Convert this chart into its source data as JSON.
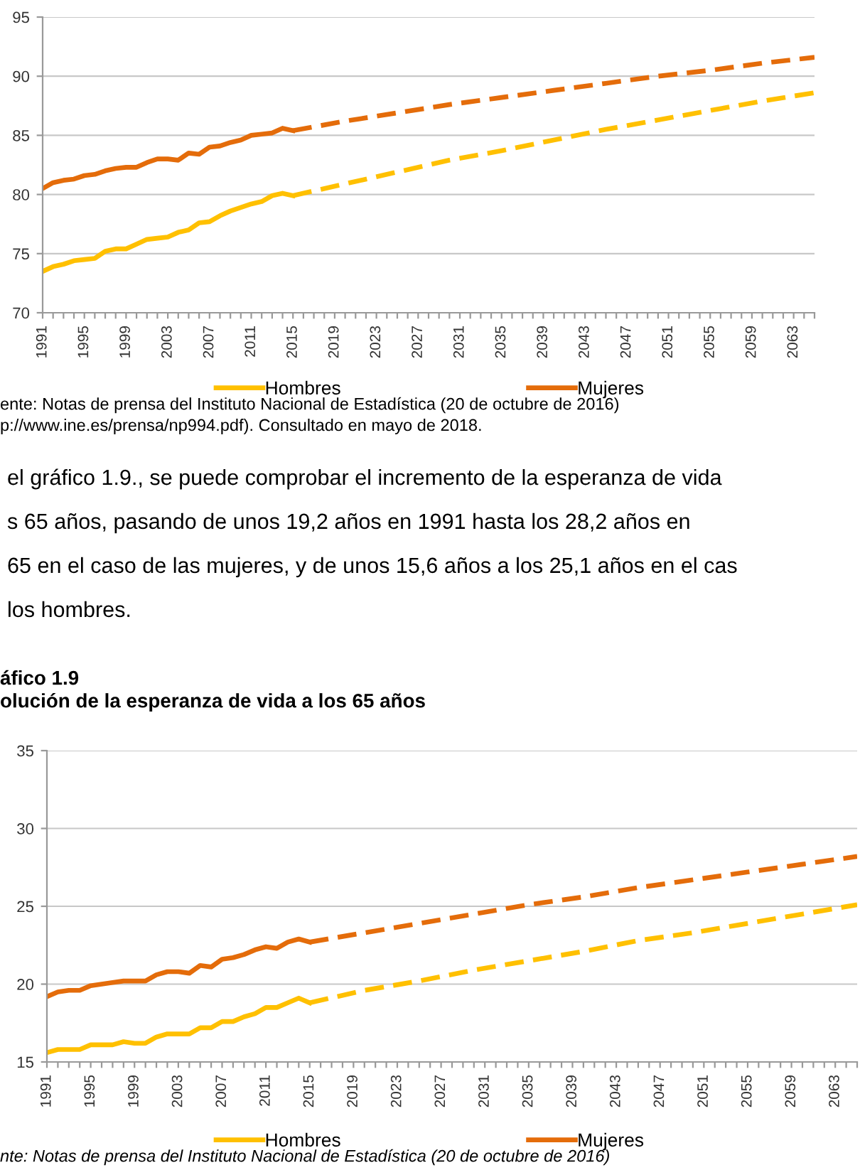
{
  "chart_data": [
    {
      "type": "line",
      "x": [
        1991,
        1992,
        1993,
        1994,
        1995,
        1996,
        1997,
        1998,
        1999,
        2000,
        2001,
        2002,
        2003,
        2004,
        2005,
        2006,
        2007,
        2008,
        2009,
        2010,
        2011,
        2012,
        2013,
        2014,
        2015
      ],
      "series": [
        {
          "name": "Hombres",
          "color": "#ffc000",
          "line_style": "solid",
          "values": [
            73.5,
            73.9,
            74.1,
            74.4,
            74.5,
            74.6,
            75.2,
            75.4,
            75.4,
            75.8,
            76.2,
            76.3,
            76.4,
            76.8,
            77.0,
            77.6,
            77.7,
            78.2,
            78.6,
            78.9,
            79.2,
            79.4,
            79.9,
            80.1,
            79.9
          ]
        },
        {
          "name": "Mujeres",
          "color": "#e46c0a",
          "line_style": "solid",
          "values": [
            80.5,
            81.0,
            81.2,
            81.3,
            81.6,
            81.7,
            82.0,
            82.2,
            82.3,
            82.3,
            82.7,
            83.0,
            83.0,
            82.9,
            83.5,
            83.4,
            84.0,
            84.1,
            84.4,
            84.6,
            85.0,
            85.1,
            85.2,
            85.6,
            85.4
          ]
        },
        {
          "color": "#ffc000",
          "line_style": "dashed",
          "x": [
            2015,
            2020,
            2025,
            2030,
            2035,
            2040,
            2045,
            2050,
            2055,
            2060,
            2065
          ],
          "values": [
            79.9,
            80.9,
            81.9,
            82.9,
            83.7,
            84.6,
            85.5,
            86.3,
            87.1,
            87.9,
            88.6
          ]
        },
        {
          "color": "#e46c0a",
          "line_style": "dashed",
          "x": [
            2015,
            2020,
            2025,
            2030,
            2035,
            2040,
            2045,
            2050,
            2055,
            2060,
            2065
          ],
          "values": [
            85.4,
            86.2,
            86.9,
            87.6,
            88.2,
            88.8,
            89.4,
            90.0,
            90.5,
            91.1,
            91.6
          ]
        }
      ],
      "xlim": [
        1991,
        2065
      ],
      "xticks": [
        1991,
        {
          "value": 1992,
          "label": null
        },
        {
          "value": 1993,
          "label": null
        },
        {
          "value": 1994,
          "label": null
        },
        1995,
        {
          "value": 1996,
          "label": null
        },
        {
          "value": 1997,
          "label": null
        },
        {
          "value": 1998,
          "label": null
        },
        1999,
        {
          "value": 2000,
          "label": null
        },
        {
          "value": 2001,
          "label": null
        },
        {
          "value": 2002,
          "label": null
        },
        2003,
        {
          "value": 2004,
          "label": null
        },
        {
          "value": 2005,
          "label": null
        },
        {
          "value": 2006,
          "label": null
        },
        2007,
        {
          "value": 2008,
          "label": null
        },
        {
          "value": 2009,
          "label": null
        },
        {
          "value": 2010,
          "label": null
        },
        2011,
        {
          "value": 2012,
          "label": null
        },
        {
          "value": 2013,
          "label": null
        },
        {
          "value": 2014,
          "label": null
        },
        2015,
        {
          "value": 2016,
          "label": null
        },
        {
          "value": 2017,
          "label": null
        },
        {
          "value": 2018,
          "label": null
        },
        2019,
        {
          "value": 2020,
          "label": null
        },
        {
          "value": 2021,
          "label": null
        },
        {
          "value": 2022,
          "label": null
        },
        2023,
        {
          "value": 2024,
          "label": null
        },
        {
          "value": 2025,
          "label": null
        },
        {
          "value": 2026,
          "label": null
        },
        2027,
        {
          "value": 2028,
          "label": null
        },
        {
          "value": 2029,
          "label": null
        },
        {
          "value": 2030,
          "label": null
        },
        2031,
        {
          "value": 2032,
          "label": null
        },
        {
          "value": 2033,
          "label": null
        },
        {
          "value": 2034,
          "label": null
        },
        2035,
        {
          "value": 2036,
          "label": null
        },
        {
          "value": 2037,
          "label": null
        },
        {
          "value": 2038,
          "label": null
        },
        2039,
        {
          "value": 2040,
          "label": null
        },
        {
          "value": 2041,
          "label": null
        },
        {
          "value": 2042,
          "label": null
        },
        2043,
        {
          "value": 2044,
          "label": null
        },
        {
          "value": 2045,
          "label": null
        },
        {
          "value": 2046,
          "label": null
        },
        2047,
        {
          "value": 2048,
          "label": null
        },
        {
          "value": 2049,
          "label": null
        },
        {
          "value": 2050,
          "label": null
        },
        2051,
        {
          "value": 2052,
          "label": null
        },
        {
          "value": 2053,
          "label": null
        },
        {
          "value": 2054,
          "label": null
        },
        2055,
        {
          "value": 2056,
          "label": null
        },
        {
          "value": 2057,
          "label": null
        },
        {
          "value": 2058,
          "label": null
        },
        2059,
        {
          "value": 2060,
          "label": null
        },
        {
          "value": 2061,
          "label": null
        },
        {
          "value": 2062,
          "label": null
        },
        2063,
        {
          "value": 2064,
          "label": null
        },
        {
          "value": 2065,
          "label": null
        }
      ],
      "ylim": [
        70,
        95
      ],
      "yticks": [
        70,
        75,
        80,
        85,
        90,
        95
      ],
      "grid": "y",
      "legend": "bottom",
      "annotations": [
        "ente: Notas de prensa del Instituto Nacional de Estadística (20 de octubre de 2016)",
        "p://www.ine.es/prensa/np994.pdf). Consultado en mayo de 2018.",
        "el gráfico 1.9., se puede comprobar el incremento de la esperanza de vida",
        "s 65 años, pasando de unos 19,2 años en 1991 hasta los 28,2 años en",
        "65 en el caso de las mujeres, y de unos 15,6 años a los 25,1 años en el cas",
        "los hombres."
      ]
    },
    {
      "type": "line",
      "title": "áfico 1.9",
      "subtitle": "olución de la esperanza de vida a los 65 años",
      "x": [
        1991,
        1992,
        1993,
        1994,
        1995,
        1996,
        1997,
        1998,
        1999,
        2000,
        2001,
        2002,
        2003,
        2004,
        2005,
        2006,
        2007,
        2008,
        2009,
        2010,
        2011,
        2012,
        2013,
        2014,
        2015
      ],
      "series": [
        {
          "name": "Hombres",
          "color": "#ffc000",
          "line_style": "solid",
          "values": [
            15.6,
            15.8,
            15.8,
            15.8,
            16.1,
            16.1,
            16.1,
            16.3,
            16.2,
            16.2,
            16.6,
            16.8,
            16.8,
            16.8,
            17.2,
            17.2,
            17.6,
            17.6,
            17.9,
            18.1,
            18.5,
            18.5,
            18.8,
            19.1,
            18.8
          ]
        },
        {
          "name": "Mujeres",
          "color": "#e46c0a",
          "line_style": "solid",
          "values": [
            19.2,
            19.5,
            19.6,
            19.6,
            19.9,
            20.0,
            20.1,
            20.2,
            20.2,
            20.2,
            20.6,
            20.8,
            20.8,
            20.7,
            21.2,
            21.1,
            21.6,
            21.7,
            21.9,
            22.2,
            22.4,
            22.3,
            22.7,
            22.9,
            22.7
          ]
        },
        {
          "color": "#ffc000",
          "line_style": "dashed",
          "x": [
            2015,
            2020,
            2025,
            2030,
            2035,
            2040,
            2045,
            2050,
            2055,
            2060,
            2065
          ],
          "values": [
            18.8,
            19.6,
            20.2,
            20.9,
            21.5,
            22.1,
            22.8,
            23.3,
            23.9,
            24.5,
            25.1
          ]
        },
        {
          "color": "#e46c0a",
          "line_style": "dashed",
          "x": [
            2015,
            2020,
            2025,
            2030,
            2035,
            2040,
            2045,
            2050,
            2055,
            2060,
            2065
          ],
          "values": [
            22.7,
            23.3,
            23.9,
            24.5,
            25.1,
            25.6,
            26.2,
            26.7,
            27.2,
            27.7,
            28.2
          ]
        }
      ],
      "xlim": [
        1991,
        2065
      ],
      "xticks": [
        1991,
        {
          "value": 1992,
          "label": null
        },
        {
          "value": 1993,
          "label": null
        },
        {
          "value": 1994,
          "label": null
        },
        1995,
        {
          "value": 1996,
          "label": null
        },
        {
          "value": 1997,
          "label": null
        },
        {
          "value": 1998,
          "label": null
        },
        1999,
        {
          "value": 2000,
          "label": null
        },
        {
          "value": 2001,
          "label": null
        },
        {
          "value": 2002,
          "label": null
        },
        2003,
        {
          "value": 2004,
          "label": null
        },
        {
          "value": 2005,
          "label": null
        },
        {
          "value": 2006,
          "label": null
        },
        2007,
        {
          "value": 2008,
          "label": null
        },
        {
          "value": 2009,
          "label": null
        },
        {
          "value": 2010,
          "label": null
        },
        2011,
        {
          "value": 2012,
          "label": null
        },
        {
          "value": 2013,
          "label": null
        },
        {
          "value": 2014,
          "label": null
        },
        2015,
        {
          "value": 2016,
          "label": null
        },
        {
          "value": 2017,
          "label": null
        },
        {
          "value": 2018,
          "label": null
        },
        2019,
        {
          "value": 2020,
          "label": null
        },
        {
          "value": 2021,
          "label": null
        },
        {
          "value": 2022,
          "label": null
        },
        2023,
        {
          "value": 2024,
          "label": null
        },
        {
          "value": 2025,
          "label": null
        },
        {
          "value": 2026,
          "label": null
        },
        2027,
        {
          "value": 2028,
          "label": null
        },
        {
          "value": 2029,
          "label": null
        },
        {
          "value": 2030,
          "label": null
        },
        2031,
        {
          "value": 2032,
          "label": null
        },
        {
          "value": 2033,
          "label": null
        },
        {
          "value": 2034,
          "label": null
        },
        2035,
        {
          "value": 2036,
          "label": null
        },
        {
          "value": 2037,
          "label": null
        },
        {
          "value": 2038,
          "label": null
        },
        2039,
        {
          "value": 2040,
          "label": null
        },
        {
          "value": 2041,
          "label": null
        },
        {
          "value": 2042,
          "label": null
        },
        2043,
        {
          "value": 2044,
          "label": null
        },
        {
          "value": 2045,
          "label": null
        },
        {
          "value": 2046,
          "label": null
        },
        2047,
        {
          "value": 2048,
          "label": null
        },
        {
          "value": 2049,
          "label": null
        },
        {
          "value": 2050,
          "label": null
        },
        2051,
        {
          "value": 2052,
          "label": null
        },
        {
          "value": 2053,
          "label": null
        },
        {
          "value": 2054,
          "label": null
        },
        2055,
        {
          "value": 2056,
          "label": null
        },
        {
          "value": 2057,
          "label": null
        },
        {
          "value": 2058,
          "label": null
        },
        2059,
        {
          "value": 2060,
          "label": null
        },
        {
          "value": 2061,
          "label": null
        },
        {
          "value": 2062,
          "label": null
        },
        2063,
        {
          "value": 2064,
          "label": null
        },
        {
          "value": 2065,
          "label": null
        }
      ],
      "ylim": [
        15,
        35
      ],
      "yticks": [
        15,
        20,
        25,
        30,
        35
      ],
      "grid": "y",
      "legend": "bottom",
      "annotations": [
        "nte: Notas de prensa del Instituto Nacional de Estadística (20 de octubre de 2016)"
      ]
    }
  ]
}
